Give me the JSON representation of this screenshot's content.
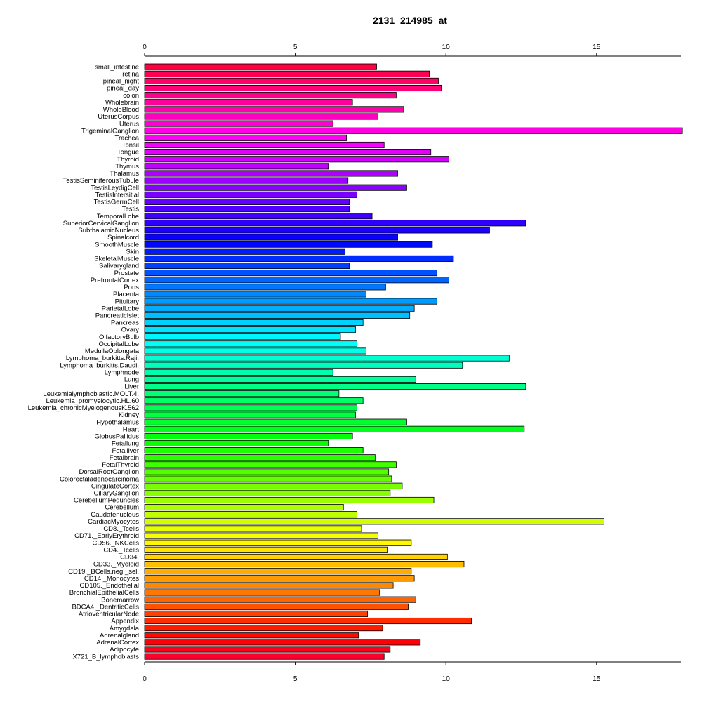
{
  "chart_data": {
    "type": "bar",
    "orientation": "horizontal",
    "title": "2131_214985_at",
    "xlabel": "",
    "ylabel": "",
    "xlim": [
      0,
      17.8
    ],
    "ticks": [
      0,
      5,
      10,
      15
    ],
    "grid": false,
    "legend": "none",
    "categories": [
      "small_intestine",
      "retina",
      "pineal_night",
      "pineal_day",
      "colon",
      "Wholebrain",
      "WholeBlood",
      "UterusCorpus",
      "Uterus",
      "TrigeminalGanglion",
      "Trachea",
      "Tonsil",
      "Tongue",
      "Thyroid",
      "Thymus",
      "Thalamus",
      "TestisSeminiferousTubule",
      "TestisLeydigCell",
      "TestisIntersitial",
      "TestisGermCell",
      "Testis",
      "TemporalLobe",
      "SuperiorCervicalGanglion",
      "SubthalamicNucleus",
      "Spinalcord",
      "SmoothMuscle",
      "Skin",
      "SkeletalMuscle",
      "Salivarygland",
      "Prostate",
      "PrefrontalCortex",
      "Pons",
      "Placenta",
      "Pituitary",
      "ParietalLobe",
      "PancreaticIslet",
      "Pancreas",
      "Ovary",
      "OlfactoryBulb",
      "OccipitalLobe",
      "MedullaOblongata",
      "Lymphoma_burkitts.Raji.",
      "Lymphoma_burkitts.Daudi.",
      "Lymphnode",
      "Lung",
      "Liver",
      "Leukemialymphoblastic.MOLT.4.",
      "Leukemia_promyelocytic.HL.60",
      "Leukemia_chronicMyelogenousK.562",
      "Kidney",
      "Hypothalamus",
      "Heart",
      "GlobusPallidus",
      "Fetallung",
      "Fetalliver",
      "Fetalbrain",
      "FetalThyroid",
      "DorsalRootGanglion",
      "Colorectaladenocarcinoma",
      "CingulateCortex",
      "CiliaryGanglion",
      "CerebellumPeduncles",
      "Cerebellum",
      "Caudatenucleus",
      "CardiacMyocytes",
      "CD8._Tcells",
      "CD71._EarlyErythroid",
      "CD56._NKCells",
      "CD4._Tcells",
      "CD34.",
      "CD33._Myeloid",
      "CD19._BCells.neg._sel.",
      "CD14._Monocytes",
      "CD105._Endothelial",
      "BronchialEpithelialCells",
      "Bonemarrow",
      "BDCA4._DentriticCells",
      "AtrioventricularNode",
      "Appendix",
      "Amygdala",
      "Adrenalgland",
      "AdrenalCortex",
      "Adipocyte",
      "X721_B_lymphoblasts"
    ],
    "values": [
      7.7,
      9.45,
      9.75,
      9.85,
      8.35,
      6.9,
      8.6,
      7.75,
      6.25,
      17.85,
      6.7,
      7.95,
      9.5,
      10.1,
      6.1,
      8.4,
      6.75,
      8.7,
      7.05,
      6.8,
      6.8,
      7.55,
      12.65,
      11.45,
      8.4,
      9.55,
      6.65,
      10.25,
      6.8,
      9.7,
      10.1,
      8.0,
      7.35,
      9.7,
      8.95,
      8.8,
      7.25,
      7.0,
      6.5,
      7.05,
      7.35,
      12.1,
      10.55,
      6.25,
      9.0,
      12.65,
      6.45,
      7.25,
      7.05,
      7.0,
      8.7,
      12.6,
      6.9,
      6.1,
      7.25,
      7.65,
      8.35,
      8.1,
      8.2,
      8.55,
      8.15,
      9.6,
      6.6,
      7.05,
      15.25,
      7.2,
      7.75,
      8.85,
      8.05,
      10.05,
      10.6,
      8.85,
      8.95,
      8.25,
      7.8,
      9.0,
      8.75,
      7.4,
      10.85,
      7.9,
      7.1,
      9.15,
      8.15,
      7.95
    ]
  }
}
